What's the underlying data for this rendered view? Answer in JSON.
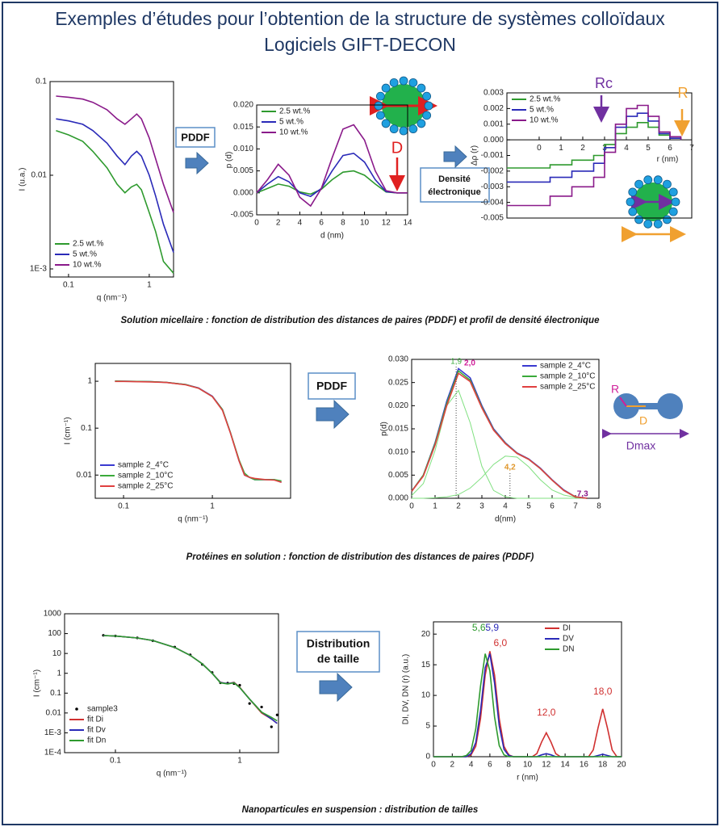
{
  "title": [
    "Exemples d’études pour l’obtention de la structure de systèmes colloïdaux",
    "Logiciels GIFT-DECON"
  ],
  "boxes": [
    [
      "PDDF"
    ],
    [
      "Densité",
      "électronique"
    ],
    [
      "PDDF"
    ],
    [
      "Distribution",
      "de taille"
    ]
  ],
  "captions": [
    "Solution micellaire : fonction de distribution des distances de paires (PDDF) et profil de densité électronique",
    "Protéines en solution :  fonction de distribution des distances de paires (PDDF)",
    "Nanoparticules en suspension : distribution de tailles"
  ],
  "chart_data": [
    {
      "type": "line",
      "xscale": "log",
      "yscale": "log",
      "xlim": [
        0.059,
        2
      ],
      "ylim": [
        0.00082,
        0.1
      ],
      "xticks": [
        0.1,
        1
      ],
      "yticks": [
        0.1,
        0.01,
        {
          "value": 0.001,
          "label": "1E-3"
        }
      ],
      "xlabel": "q (nm⁻¹)",
      "ylabel": "I (u.a.)",
      "legend": "lower left",
      "x": [
        0.07,
        0.1,
        0.15,
        0.2,
        0.3,
        0.4,
        0.5,
        0.6,
        0.7,
        0.8,
        1.0,
        1.2,
        1.5,
        2.0
      ],
      "series": [
        {
          "name": "2.5 wt.%",
          "color": "#2e9a2e",
          "values": [
            0.03,
            0.027,
            0.023,
            0.018,
            0.012,
            0.008,
            0.0065,
            0.0075,
            0.008,
            0.007,
            0.004,
            0.0025,
            0.0012,
            0.0009
          ]
        },
        {
          "name": "5 wt.%",
          "color": "#2a2ab8",
          "values": [
            0.04,
            0.038,
            0.035,
            0.03,
            0.022,
            0.016,
            0.013,
            0.016,
            0.018,
            0.016,
            0.01,
            0.006,
            0.003,
            0.0015
          ]
        },
        {
          "name": "10 wt.%",
          "color": "#8a1a8a",
          "values": [
            0.07,
            0.068,
            0.065,
            0.06,
            0.05,
            0.04,
            0.035,
            0.04,
            0.045,
            0.04,
            0.025,
            0.015,
            0.008,
            0.004
          ]
        }
      ]
    },
    {
      "type": "line",
      "xlim": [
        0,
        14
      ],
      "ylim": [
        -0.005,
        0.02
      ],
      "xticks": [
        0,
        2,
        4,
        6,
        8,
        10,
        12,
        14
      ],
      "yticks": [
        {
          "value": 0.02,
          "label": "0.020"
        },
        0.015,
        {
          "value": 0.01,
          "label": "0.010"
        },
        0.005,
        {
          "value": 0,
          "label": "0.000"
        },
        -0.005
      ],
      "xlabel": "d (nm)",
      "ylabel": "p (d)",
      "legend": "upper left",
      "annotations": [
        "D"
      ],
      "x": [
        0,
        1,
        2,
        3,
        4,
        5,
        6,
        7,
        8,
        9,
        10,
        11,
        12,
        13,
        14
      ],
      "series": [
        {
          "name": "2.5 wt.%",
          "color": "#2e9a2e",
          "values": [
            0,
            0.001,
            0.002,
            0.0015,
            0.0002,
            -0.0003,
            0.0008,
            0.003,
            0.0047,
            0.005,
            0.004,
            0.002,
            0.0002,
            0,
            0
          ]
        },
        {
          "name": "5 wt.%",
          "color": "#2a2ab8",
          "values": [
            0,
            0.002,
            0.0037,
            0.0025,
            0,
            -0.0008,
            0.001,
            0.005,
            0.0085,
            0.009,
            0.007,
            0.003,
            0.0003,
            0,
            0
          ]
        },
        {
          "name": "10 wt.%",
          "color": "#8a1a8a",
          "values": [
            0,
            0.003,
            0.0065,
            0.004,
            -0.001,
            -0.003,
            0.001,
            0.008,
            0.0145,
            0.0155,
            0.012,
            0.005,
            0.0005,
            0,
            0
          ]
        }
      ]
    },
    {
      "type": "step",
      "xaxis_at_zero": true,
      "xlim": [
        -1.48,
        7
      ],
      "ylim": [
        -0.005,
        0.003
      ],
      "xticks": [
        0,
        1,
        2,
        3,
        4,
        5,
        6,
        7
      ],
      "yticks": [
        0.003,
        0.002,
        0.001,
        {
          "value": 0,
          "label": "0.000"
        },
        -0.001,
        -0.002,
        -0.003,
        -0.004,
        -0.005
      ],
      "xlabel": "r (nm)",
      "ylabel": "Δρ (r)",
      "legend": "upper left",
      "annotations": [
        "Rc",
        "R"
      ],
      "x": [
        -1.48,
        0.5,
        1.5,
        2.5,
        3,
        3.5,
        4,
        4.5,
        5,
        5.5,
        6,
        6.5
      ],
      "series": [
        {
          "name": "2.5 wt.%",
          "color": "#2e9a2e",
          "values": [
            -0.0018,
            -0.0016,
            -0.0013,
            -0.001,
            -0.0003,
            0.0004,
            0.0008,
            0.0011,
            0.0008,
            0.0003,
            0.0001,
            0
          ]
        },
        {
          "name": "5 wt.%",
          "color": "#2a2ab8",
          "values": [
            -0.0027,
            -0.0024,
            -0.002,
            -0.0015,
            -0.0005,
            0.0008,
            0.0015,
            0.0017,
            0.0012,
            0.0004,
            0.0001,
            0
          ]
        },
        {
          "name": "10 wt.%",
          "color": "#8a1a8a",
          "values": [
            -0.0042,
            -0.0036,
            -0.003,
            -0.0024,
            -0.0008,
            0.001,
            0.002,
            0.0022,
            0.0015,
            0.0005,
            0.0002,
            0
          ]
        }
      ]
    },
    {
      "type": "line",
      "xscale": "log",
      "yscale": "log",
      "xlim": [
        0.048,
        7.6
      ],
      "ylim": [
        0.0032,
        2.4
      ],
      "xticks": [
        0.1,
        1
      ],
      "yticks": [
        1,
        0.1,
        0.01
      ],
      "xlabel": "q (nm⁻¹)",
      "ylabel": "I (cm⁻¹)",
      "legend": "lower left",
      "x": [
        0.08,
        0.1,
        0.2,
        0.3,
        0.5,
        0.7,
        1,
        1.3,
        1.6,
        2,
        2.3,
        2.6,
        3,
        4,
        5,
        6
      ],
      "series": [
        {
          "name": "sample 2_4°C",
          "color": "#3a3ad0",
          "values": [
            1,
            1,
            0.98,
            0.95,
            0.85,
            0.72,
            0.48,
            0.25,
            0.08,
            0.02,
            0.01,
            0.009,
            0.008,
            0.008,
            0.008,
            0.007
          ]
        },
        {
          "name": "sample 2_10°C",
          "color": "#3aaa3a",
          "values": [
            1.01,
            1,
            0.98,
            0.95,
            0.85,
            0.71,
            0.47,
            0.25,
            0.08,
            0.021,
            0.011,
            0.009,
            0.008,
            0.008,
            0.008,
            0.0075
          ]
        },
        {
          "name": "sample 2_25°C",
          "color": "#e04040",
          "values": [
            0.99,
            0.99,
            0.97,
            0.94,
            0.84,
            0.71,
            0.47,
            0.24,
            0.078,
            0.02,
            0.01,
            0.009,
            0.0085,
            0.008,
            0.0078,
            0.007
          ]
        }
      ]
    },
    {
      "type": "line",
      "xlim": [
        0,
        8
      ],
      "ylim": [
        0,
        0.03
      ],
      "xticks": [
        0,
        1,
        2,
        3,
        4,
        5,
        6,
        7,
        8
      ],
      "yticks": [
        {
          "value": 0,
          "label": "0.000"
        },
        0.005,
        {
          "value": 0.01,
          "label": "0.010"
        },
        0.015,
        {
          "value": 0.02,
          "label": "0.020"
        },
        0.025,
        {
          "value": 0.03,
          "label": "0.030"
        }
      ],
      "xlabel": "d(nm)",
      "ylabel": "p(d)",
      "legend": "upper right",
      "annotations": [
        "R",
        "D",
        "Dmax"
      ],
      "x": [
        0,
        0.5,
        1,
        1.5,
        2,
        2.5,
        3,
        3.5,
        4,
        4.5,
        5,
        5.5,
        6,
        6.5,
        7,
        7.5
      ],
      "components": [
        {
          "color": "#80e080",
          "values": [
            0.0006,
            0.0032,
            0.0103,
            0.02,
            0.0233,
            0.0163,
            0.0069,
            0.0017,
            0.0003,
            0,
            0,
            0,
            0,
            0,
            0,
            0
          ]
        },
        {
          "color": "#80e080",
          "values": [
            0,
            0,
            0.0001,
            0.0003,
            0.0008,
            0.0022,
            0.0045,
            0.0073,
            0.0091,
            0.0089,
            0.0068,
            0.004,
            0.0018,
            0.0007,
            0.0002,
            0
          ]
        }
      ],
      "series": [
        {
          "name": "sample 2_4°C",
          "color": "#3a3ad0",
          "values": [
            0.0015,
            0.005,
            0.012,
            0.021,
            0.028,
            0.026,
            0.02,
            0.015,
            0.012,
            0.0098,
            0.0085,
            0.0065,
            0.004,
            0.0018,
            0.0003,
            0
          ]
        },
        {
          "name": "sample 2_10°C",
          "color": "#3aaa3a",
          "values": [
            0.0015,
            0.005,
            0.0118,
            0.0205,
            0.0275,
            0.0255,
            0.0197,
            0.0148,
            0.0119,
            0.0097,
            0.0084,
            0.0064,
            0.0039,
            0.0017,
            0.0003,
            0
          ]
        },
        {
          "name": "sample 2_25°C",
          "color": "#e04040",
          "values": [
            0.0015,
            0.0048,
            0.0115,
            0.02,
            0.027,
            0.0252,
            0.0195,
            0.0147,
            0.0118,
            0.0097,
            0.0084,
            0.0064,
            0.0039,
            0.0017,
            0.0003,
            0
          ]
        }
      ],
      "peak_labels": [
        {
          "value": 1.9,
          "label": "1,9",
          "color": "#3aaa3a",
          "line": true
        },
        {
          "value": 2.0,
          "label": "2,0",
          "color": "#d0209a",
          "line": false
        },
        {
          "value": 4.2,
          "label": "4,2",
          "color": "#e0962a",
          "line": true
        },
        {
          "value": 7.3,
          "label": "7,3",
          "color": "#8a1a8a",
          "line": false
        }
      ]
    },
    {
      "type": "line",
      "xscale": "log",
      "yscale": "log",
      "xlim": [
        0.039,
        2.05
      ],
      "ylim": [
        0.0001,
        1000
      ],
      "xticks": [
        0.1,
        1
      ],
      "yticks": [
        1000,
        100,
        10,
        1,
        0.1,
        0.01,
        {
          "value": 0.001,
          "label": "1E-3"
        },
        {
          "value": 0.0001,
          "label": "1E-4"
        }
      ],
      "xlabel": "q (nm⁻¹)",
      "ylabel": "I (cm⁻¹)",
      "legend": "lower left",
      "x": [
        0.08,
        0.1,
        0.15,
        0.2,
        0.3,
        0.4,
        0.5,
        0.6,
        0.7,
        0.8,
        0.9,
        1,
        1.2,
        1.5,
        1.8,
        2
      ],
      "series": [
        {
          "name": "sample3",
          "color": "#000000",
          "style": "points",
          "values": [
            82,
            76,
            61,
            44,
            21,
            8.5,
            2.8,
            1.1,
            0.33,
            0.32,
            0.3,
            0.25,
            0.03,
            0.02,
            0.002,
            0.008
          ]
        },
        {
          "name": "fit Di",
          "color": "#d03030",
          "values": [
            80,
            75,
            60,
            45,
            20,
            8,
            3,
            1,
            0.35,
            0.3,
            0.35,
            0.2,
            0.05,
            0.01,
            0.005,
            0.003
          ]
        },
        {
          "name": "fit Dv",
          "color": "#2a2ab8",
          "values": [
            80,
            75,
            60,
            45,
            20,
            8,
            3,
            1,
            0.34,
            0.3,
            0.34,
            0.19,
            0.05,
            0.011,
            0.005,
            0.003
          ]
        },
        {
          "name": "fit Dn",
          "color": "#2e9a2e",
          "values": [
            80,
            75,
            60,
            45,
            20,
            8,
            3,
            1,
            0.33,
            0.29,
            0.33,
            0.19,
            0.05,
            0.011,
            0.006,
            0.004
          ]
        }
      ]
    },
    {
      "type": "line",
      "xlim": [
        0,
        20
      ],
      "ylim": [
        0,
        22
      ],
      "xticks": [
        0,
        2,
        4,
        6,
        8,
        10,
        12,
        14,
        16,
        18,
        20
      ],
      "yticks": [
        0,
        5,
        10,
        15,
        20
      ],
      "xlabel": "r (nm)",
      "ylabel": "DI, DV, DN (r) (a.u.)",
      "legend": "upper right",
      "x": [
        0,
        0.5,
        1,
        1.5,
        2,
        2.5,
        3,
        3.5,
        4,
        4.5,
        5,
        5.5,
        6,
        6.5,
        7,
        7.5,
        8,
        8.5,
        9,
        9.5,
        10,
        10.5,
        11,
        11.5,
        12,
        12.5,
        13,
        13.5,
        14,
        14.5,
        15,
        15.5,
        16,
        16.5,
        17,
        17.5,
        18,
        18.5,
        19,
        19.5,
        20
      ],
      "series": [
        {
          "name": "DI",
          "color": "#d03030",
          "values": [
            0,
            0,
            0,
            0,
            0,
            0,
            0,
            0,
            0.3,
            1.7,
            6.2,
            13.3,
            17.2,
            13.3,
            6.2,
            1.7,
            0.3,
            0,
            0,
            0,
            0,
            0,
            0.5,
            2.4,
            3.9,
            2.4,
            0.5,
            0,
            0,
            0,
            0,
            0,
            0,
            0,
            1.1,
            4.7,
            7.8,
            4.7,
            1.1,
            0,
            0
          ]
        },
        {
          "name": "DV",
          "color": "#2a2ab8",
          "values": [
            0,
            0,
            0,
            0,
            0,
            0,
            0,
            0,
            0.5,
            2.3,
            7.5,
            14.5,
            16.8,
            12,
            5,
            1.2,
            0.2,
            0,
            0,
            0,
            0,
            0,
            0,
            0.3,
            0.5,
            0.3,
            0,
            0,
            0,
            0,
            0,
            0,
            0,
            0,
            0,
            0.2,
            0.4,
            0.2,
            0,
            0,
            0
          ]
        },
        {
          "name": "DN",
          "color": "#2e9a2e",
          "values": [
            0,
            0,
            0,
            0,
            0,
            0,
            0,
            0.2,
            1,
            4.5,
            11.5,
            16.8,
            14,
            6.5,
            1.8,
            0.3,
            0,
            0,
            0,
            0,
            0,
            0,
            0,
            0,
            0,
            0,
            0,
            0,
            0,
            0,
            0,
            0,
            0,
            0,
            0,
            0,
            0,
            0,
            0,
            0,
            0
          ]
        }
      ],
      "peak_labels": [
        {
          "value": 5.9,
          "label": "5,9",
          "color": "#2a2ab8"
        },
        {
          "value": 5.6,
          "label": "5,6",
          "color": "#2e9a2e"
        },
        {
          "value": 6.0,
          "label": "6,0",
          "color": "#d03030"
        },
        {
          "value": 12.0,
          "label": "12,0",
          "color": "#d03030"
        },
        {
          "value": 18.0,
          "label": "18,0",
          "color": "#d03030"
        }
      ]
    }
  ]
}
